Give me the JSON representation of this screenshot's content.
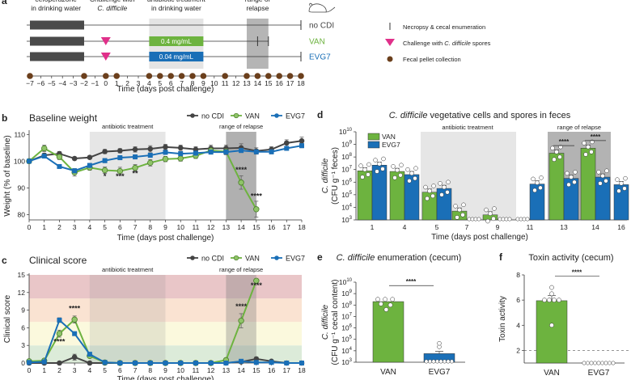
{
  "panel_a": {
    "letter": "a",
    "header_labels": {
      "cefoperazone": [
        "cefoperazone",
        "in drinking water"
      ],
      "challenge": [
        "Challenge with",
        "C. difficile"
      ],
      "antibiotic": [
        "antibiotic treatment",
        "in drinking water"
      ],
      "relapse": [
        "range of",
        "relapse"
      ]
    },
    "groups": [
      {
        "name": "no CDI",
        "color": "#444444",
        "bar_label": "",
        "bar_color": "",
        "challenge": false,
        "end_ticks": [
          18
        ]
      },
      {
        "name": "VAN",
        "color": "#6db33f",
        "bar_label": "0.4 mg/mL",
        "bar_color": "#6db33f",
        "challenge": true,
        "end_ticks": [
          14,
          15
        ]
      },
      {
        "name": "EVG7",
        "color": "#1a6fb7",
        "bar_label": "0.04 mg/mL",
        "bar_color": "#1a6fb7",
        "challenge": true,
        "end_ticks": [
          18
        ]
      }
    ],
    "axis_ticks": [
      -7,
      -6,
      -5,
      -4,
      -3,
      -2,
      -1,
      0,
      1,
      2,
      3,
      4,
      5,
      6,
      7,
      8,
      9,
      10,
      11,
      12,
      13,
      14,
      15,
      16,
      17,
      18
    ],
    "pellet_days": [
      -7,
      -2,
      0,
      1,
      4,
      5,
      6,
      7,
      8,
      9,
      11,
      13,
      14,
      15,
      16,
      17,
      18
    ],
    "xlabel": "Time (days post challenge)",
    "legend": [
      {
        "icon": "necropsy-tick-icon",
        "label": "Necropsy & cecal enumeration"
      },
      {
        "icon": "challenge-triangle-icon",
        "label_prefix": "Challenge with ",
        "label_italic": "C. difficile",
        "label_suffix": " spores"
      },
      {
        "icon": "fecal-pellet-dot-icon",
        "label": "Fecal pellet collection"
      }
    ],
    "mouse_icon": "mouse-icon"
  },
  "colors": {
    "noCDI": "#444444",
    "VAN": "#6db33f",
    "EVG7": "#1a6fb7",
    "challenge": "#e0308a",
    "pellet": "#6b3f1c",
    "treat_shade": "#e4e4e4",
    "relapse_shade": "#b5b5b5"
  },
  "chart_data": [
    {
      "id": "b",
      "type": "line",
      "letter": "b",
      "title": "Baseline weight",
      "xlabel": "Time (days post challenge)",
      "ylabel": "Weight (% of baseline)",
      "xlim": [
        0,
        18
      ],
      "ylim": [
        78,
        111
      ],
      "yticks": [
        80,
        90,
        100,
        110
      ],
      "xticks": [
        0,
        1,
        2,
        3,
        4,
        5,
        6,
        7,
        8,
        9,
        10,
        11,
        12,
        13,
        14,
        15,
        16,
        17,
        18
      ],
      "shaded_regions": [
        {
          "label": "antibiotic treatment",
          "x": [
            4,
            9
          ]
        },
        {
          "label": "range of relapse",
          "x": [
            13,
            15
          ]
        }
      ],
      "legend": [
        "no CDI",
        "VAN",
        "EVG7"
      ],
      "legend_position": "top-right",
      "series": [
        {
          "name": "no CDI",
          "x": [
            0,
            1,
            2,
            3,
            4,
            5,
            6,
            7,
            8,
            9,
            10,
            11,
            12,
            13,
            14,
            15,
            16,
            17,
            18
          ],
          "y": [
            100,
            102.2,
            102.8,
            101,
            101.4,
            103.6,
            103.9,
            104.4,
            104.6,
            105.3,
            105,
            104.4,
            104.8,
            104.8,
            105,
            103.8,
            104.4,
            106.8,
            107.6
          ],
          "err": [
            0.5,
            0.8,
            0.8,
            0.6,
            0.6,
            0.8,
            0.8,
            1,
            1.2,
            1,
            1,
            1,
            1.2,
            1.2,
            1.5,
            1.2,
            1,
            1.2,
            1.4
          ]
        },
        {
          "name": "VAN",
          "x": [
            0,
            1,
            2,
            3,
            4,
            5,
            6,
            7,
            8,
            9,
            10,
            11,
            12,
            13,
            14,
            15
          ],
          "y": [
            100,
            104.8,
            101.6,
            95.8,
            97.6,
            96.6,
            96.3,
            97.5,
            99.4,
            100.8,
            101,
            102,
            104,
            103.6,
            92,
            82
          ],
          "err": [
            0.5,
            1.2,
            1,
            1.4,
            1,
            1.2,
            1.4,
            1.2,
            1.2,
            1,
            1,
            1,
            1.2,
            1.2,
            2.5,
            3
          ]
        },
        {
          "name": "EVG7",
          "x": [
            0,
            1,
            2,
            3,
            4,
            5,
            6,
            7,
            8,
            9,
            10,
            11,
            12,
            13,
            14,
            15,
            16,
            17,
            18
          ],
          "y": [
            100,
            101.9,
            98,
            96.4,
            98.4,
            100.2,
            101.3,
            101.6,
            102.2,
            103.3,
            102.8,
            103,
            103.4,
            103.4,
            104,
            103.5,
            103.5,
            104.8,
            105.8
          ],
          "err": [
            0.5,
            0.6,
            0.5,
            0.8,
            0.8,
            0.8,
            0.8,
            0.8,
            0.8,
            0.8,
            0.8,
            0.8,
            0.8,
            0.8,
            0.8,
            0.8,
            0.8,
            0.8,
            0.8
          ]
        }
      ],
      "annotations": [
        {
          "x": 5,
          "y": 93.5,
          "text": "*"
        },
        {
          "x": 6,
          "y": 93.5,
          "text": "***"
        },
        {
          "x": 7,
          "y": 94.5,
          "text": "**"
        },
        {
          "x": 14,
          "y": 95.8,
          "text": "****"
        },
        {
          "x": 15,
          "y": 86,
          "text": "****"
        }
      ]
    },
    {
      "id": "c",
      "type": "line",
      "letter": "c",
      "title": "Clinical score",
      "xlabel": "Time (days post challenge)",
      "ylabel": "Clinical score",
      "xlim": [
        0,
        18
      ],
      "ylim": [
        0,
        15
      ],
      "yticks": [
        0,
        3,
        6,
        9,
        12,
        15
      ],
      "xticks": [
        0,
        1,
        2,
        3,
        4,
        5,
        6,
        7,
        8,
        9,
        10,
        11,
        12,
        13,
        14,
        15,
        16,
        17,
        18
      ],
      "severity_bands": [
        {
          "from": 0,
          "to": 3,
          "color": "#dcebd9"
        },
        {
          "from": 3,
          "to": 7,
          "color": "#fbf9dd"
        },
        {
          "from": 7,
          "to": 11,
          "color": "#fae3d2"
        },
        {
          "from": 11,
          "to": 15,
          "color": "#e9c6c8"
        }
      ],
      "shaded_regions": [
        {
          "label": "antibiotic treatment",
          "x": [
            4,
            9
          ]
        },
        {
          "label": "range of relapse",
          "x": [
            13,
            15
          ]
        }
      ],
      "legend": [
        "no CDI",
        "VAN",
        "EVG7"
      ],
      "legend_position": "top-right",
      "series": [
        {
          "name": "no CDI",
          "x": [
            0,
            1,
            2,
            3,
            4,
            5,
            6,
            7,
            8,
            9,
            10,
            11,
            12,
            13,
            14,
            15,
            16,
            17,
            18
          ],
          "y": [
            0,
            0,
            0,
            1,
            0,
            0,
            0,
            0,
            0,
            0,
            0,
            0,
            0,
            0,
            0.2,
            0.7,
            0.3,
            0,
            0
          ],
          "err": [
            0,
            0,
            0,
            0.5,
            0,
            0,
            0,
            0,
            0,
            0,
            0,
            0,
            0,
            0,
            0.2,
            0.3,
            0.2,
            0,
            0
          ]
        },
        {
          "name": "VAN",
          "x": [
            0,
            1,
            2,
            3,
            4,
            5,
            6,
            7,
            8,
            9,
            10,
            11,
            12,
            13,
            14,
            15
          ],
          "y": [
            0.3,
            0.4,
            5,
            7.4,
            1.2,
            0.1,
            0,
            0,
            0,
            0,
            0,
            0,
            0,
            0.5,
            7.2,
            14
          ],
          "err": [
            0.1,
            0.2,
            0.6,
            0.6,
            0.3,
            0.1,
            0,
            0,
            0,
            0,
            0,
            0,
            0,
            0.3,
            1.2,
            0
          ]
        },
        {
          "name": "EVG7",
          "x": [
            0,
            1,
            2,
            3,
            4,
            5,
            6,
            7,
            8,
            9,
            10,
            11,
            12,
            13,
            14,
            15,
            16,
            17,
            18
          ],
          "y": [
            0.1,
            0.2,
            7.3,
            5,
            1.5,
            0.1,
            0,
            0,
            0,
            0,
            0,
            0,
            0,
            0,
            0.3,
            0.1,
            0.1,
            0,
            0
          ],
          "err": [
            0.1,
            0.1,
            0.4,
            0.3,
            0.3,
            0.1,
            0,
            0,
            0,
            0,
            0,
            0,
            0,
            0,
            0.2,
            0.1,
            0.1,
            0,
            0
          ]
        }
      ],
      "annotations": [
        {
          "x": 2,
          "y": 3.2,
          "text": "****"
        },
        {
          "x": 3,
          "y": 8.9,
          "text": "****"
        },
        {
          "x": 14,
          "y": 9.2,
          "text": "****"
        },
        {
          "x": 15,
          "y": 12.8,
          "text": "****"
        }
      ]
    },
    {
      "id": "d",
      "type": "bar",
      "letter": "d",
      "title_italic": "C. difficile",
      "title_rest": " vegetative cells and spores in feces",
      "xlabel": "Time (days post challenge)",
      "ylabel_line1": "C. difficile",
      "ylabel_line2": "(CFU g⁻¹ feces)",
      "yscale": "log",
      "ylim_exp": [
        3,
        10
      ],
      "yticks_exp": [
        3,
        4,
        5,
        6,
        7,
        8,
        9,
        10
      ],
      "categories": [
        "1",
        "4",
        "5",
        "7",
        "9",
        "11",
        "13",
        "14",
        "16"
      ],
      "shaded_regions": [
        {
          "label": "antibiotic treatment",
          "cat_range": [
            "5",
            "9"
          ]
        },
        {
          "label": "range of relapse",
          "cat_range": [
            "13",
            "14"
          ]
        }
      ],
      "legend": [
        "VAN",
        "EVG7"
      ],
      "legend_position": "top-left",
      "series": [
        {
          "name": "VAN",
          "values_log10": [
            6.9,
            6.85,
            5.2,
            3.7,
            3.4,
            3.0,
            8.3,
            8.7,
            null
          ]
        },
        {
          "name": "EVG7",
          "values_log10": [
            7.35,
            6.6,
            5.5,
            3.0,
            3.0,
            5.85,
            6.3,
            6.4,
            5.8
          ]
        }
      ],
      "significance": [
        {
          "category": "13",
          "text": "****"
        },
        {
          "category": "14",
          "text": "****"
        }
      ]
    },
    {
      "id": "e",
      "type": "bar",
      "letter": "e",
      "title_italic": "C. difficile",
      "title_rest": " enumeration (cecum)",
      "ylabel_line1": "C. difficile",
      "ylabel_line2": "(CFU g⁻¹ cecal content)",
      "yscale": "log",
      "ylim_exp": [
        3,
        10
      ],
      "yticks_exp": [
        3,
        4,
        5,
        6,
        7,
        8,
        9,
        10
      ],
      "categories": [
        "VAN",
        "EVG7"
      ],
      "values_log10": [
        8.3,
        3.75
      ],
      "significance": "****"
    },
    {
      "id": "f",
      "type": "bar",
      "letter": "f",
      "title": "Toxin activity (cecum)",
      "ylabel": "Toxin activity",
      "ylim": [
        1,
        8
      ],
      "yticks": [
        2,
        4,
        6,
        8
      ],
      "categories": [
        "VAN",
        "EVG7"
      ],
      "values": [
        5.95,
        1
      ],
      "detection_limit": 2,
      "significance": "****"
    }
  ]
}
